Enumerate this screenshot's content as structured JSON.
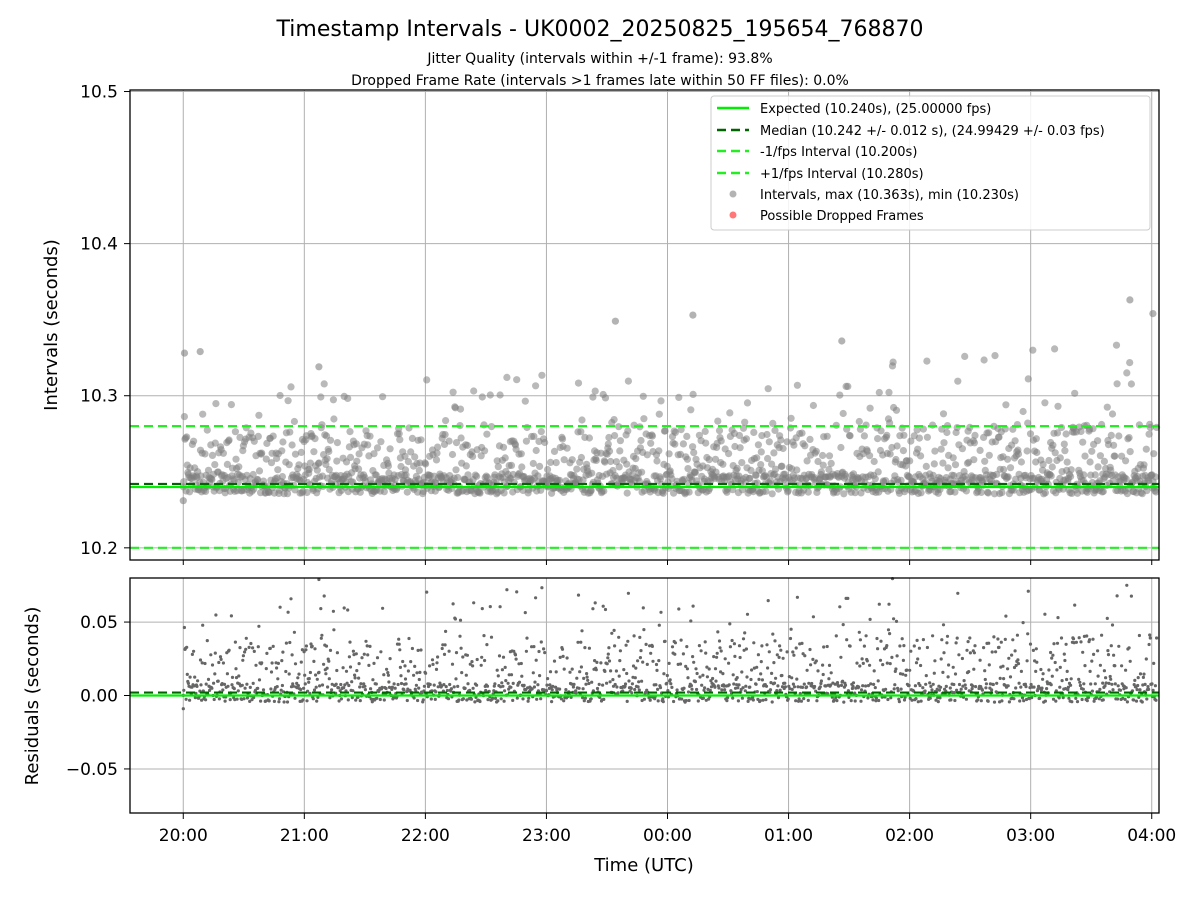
{
  "figure": {
    "title": "Timestamp Intervals - UK0002_20250825_195654_768870",
    "subtitle_1": "Jitter Quality (intervals within +/-1 frame): 93.8%",
    "subtitle_2": "Dropped Frame Rate (intervals >1 frames late within 50 FF files): 0.0%",
    "xlabel": "Time (UTC)"
  },
  "colors": {
    "expected": "#00ee00",
    "median": "#006400",
    "bounds": "#22ee22",
    "points": "#808080",
    "dropped": "#ff5555",
    "grid": "#b0b0b0"
  },
  "chart_data": [
    {
      "type": "scatter",
      "panel": "intervals",
      "ylabel": "Intervals (seconds)",
      "xlim_hours": [
        -0.44,
        8.06
      ],
      "ylim": [
        10.192,
        10.501
      ],
      "yticks": [
        10.2,
        10.3,
        10.4,
        10.5
      ],
      "ytick_labels": [
        "10.2",
        "10.3",
        "10.4",
        "10.5"
      ],
      "grid": true,
      "legend_position": "top-right",
      "reference_lines": [
        {
          "name": "Expected (10.240s), (25.00000 fps)",
          "value": 10.24,
          "style": "solid",
          "color_key": "expected"
        },
        {
          "name": "Median (10.242 +/- 0.012 s), (24.99429 +/- 0.03 fps)",
          "value": 10.242,
          "style": "dashed",
          "color_key": "median"
        },
        {
          "name": "-1/fps Interval (10.200s)",
          "value": 10.2,
          "style": "dashed",
          "color_key": "bounds"
        },
        {
          "name": "+1/fps Interval (10.280s)",
          "value": 10.28,
          "style": "dashed",
          "color_key": "bounds"
        }
      ],
      "series": [
        {
          "name": "Intervals, max (10.363s), min (10.230s)",
          "marker": "circle",
          "color_key": "points",
          "max": 10.363,
          "min": 10.23,
          "median": 10.242,
          "typical_upper": 10.28
        },
        {
          "name": "Possible Dropped Frames",
          "marker": "circle",
          "color_key": "dropped",
          "count": 0
        }
      ],
      "notable_points": [
        {
          "x": 0.0,
          "y": 10.231
        },
        {
          "x": 0.01,
          "y": 10.328
        },
        {
          "x": 0.14,
          "y": 10.329
        },
        {
          "x": 1.12,
          "y": 10.319
        },
        {
          "x": 3.57,
          "y": 10.349
        },
        {
          "x": 4.21,
          "y": 10.353
        },
        {
          "x": 5.44,
          "y": 10.336
        },
        {
          "x": 7.82,
          "y": 10.363
        },
        {
          "x": 8.01,
          "y": 10.354
        }
      ]
    },
    {
      "type": "scatter",
      "panel": "residuals",
      "ylabel": "Residuals (seconds)",
      "xlabel": "Time (UTC)",
      "xlim_hours": [
        -0.44,
        8.06
      ],
      "ylim": [
        -0.08,
        0.08
      ],
      "yticks": [
        -0.05,
        0.0,
        0.05
      ],
      "ytick_labels": [
        "−0.05",
        "0.00",
        "0.05"
      ],
      "xticks_hours": [
        0,
        1,
        2,
        3,
        4,
        5,
        6,
        7,
        8
      ],
      "xtick_labels": [
        "20:00",
        "21:00",
        "22:00",
        "23:00",
        "00:00",
        "01:00",
        "02:00",
        "03:00",
        "04:00"
      ],
      "grid": true,
      "reference_lines": [
        {
          "value": 0.0,
          "style": "solid",
          "color_key": "expected"
        },
        {
          "value": 0.002,
          "style": "dashed",
          "color_key": "median"
        }
      ],
      "series": [
        {
          "marker": "small-circle",
          "color_key": "points",
          "max": 0.08,
          "min": -0.01
        }
      ]
    }
  ]
}
